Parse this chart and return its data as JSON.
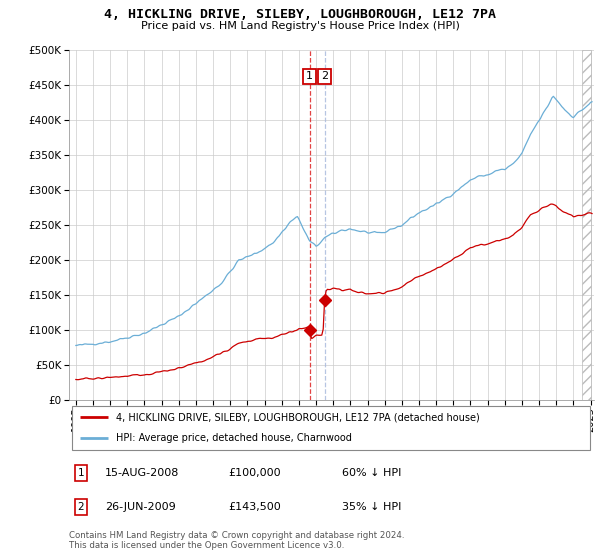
{
  "title": "4, HICKLING DRIVE, SILEBY, LOUGHBOROUGH, LE12 7PA",
  "subtitle": "Price paid vs. HM Land Registry's House Price Index (HPI)",
  "red_label": "4, HICKLING DRIVE, SILEBY, LOUGHBOROUGH, LE12 7PA (detached house)",
  "blue_label": "HPI: Average price, detached house, Charnwood",
  "footer": "Contains HM Land Registry data © Crown copyright and database right 2024.\nThis data is licensed under the Open Government Licence v3.0.",
  "transaction_1_date": "15-AUG-2008",
  "transaction_1_price": "£100,000",
  "transaction_1_hpi": "60% ↓ HPI",
  "transaction_2_date": "26-JUN-2009",
  "transaction_2_price": "£143,500",
  "transaction_2_hpi": "35% ↓ HPI",
  "hpi_color": "#6baed6",
  "price_color": "#cc0000",
  "vline1_color": "#cc0000",
  "vline2_color": "#aaaacc",
  "background_color": "#ffffff",
  "grid_color": "#cccccc",
  "sale_year_1": 2008.625,
  "sale_price_1": 100000,
  "sale_year_2": 2009.5,
  "sale_price_2": 143500,
  "xmin": 1995.0,
  "xmax": 2025.0
}
